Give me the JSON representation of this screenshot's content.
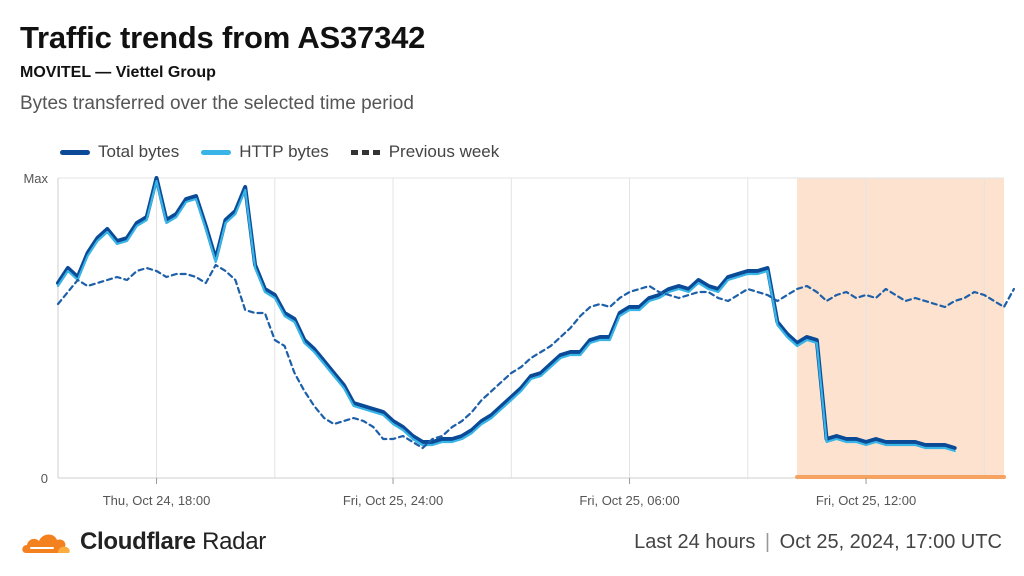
{
  "header": {
    "title": "Traffic trends from AS37342",
    "subtitle": "MOVITEL — Viettel Group",
    "description": "Bytes transferred over the selected time period"
  },
  "legend": {
    "total": "Total bytes",
    "http": "HTTP bytes",
    "previous": "Previous week"
  },
  "footer": {
    "brand_bold": "Cloudflare",
    "brand_light": "Radar",
    "period": "Last 24 hours",
    "separator": "|",
    "date": "Oct 25, 2024, 17:00 UTC"
  },
  "colors": {
    "total": "#0b4a96",
    "http": "#38b4e6",
    "previous": "#1d5fa8",
    "highlight_fill": "#fde3cf",
    "highlight_bar": "#f6a261",
    "grid": "#e3e3e3",
    "brand_orange": "#f48120"
  },
  "chart_data": {
    "type": "line",
    "ytick_labels": [
      "Max",
      "0"
    ],
    "ylim": [
      0,
      100
    ],
    "xlim": [
      0,
      96
    ],
    "x_ticks": [
      {
        "x": 10,
        "label": "Thu, Oct 24, 18:00"
      },
      {
        "x": 34,
        "label": "Fri, Oct 25, 24:00"
      },
      {
        "x": 58,
        "label": "Fri, Oct 25, 06:00"
      },
      {
        "x": 82,
        "label": "Fri, Oct 25, 12:00"
      }
    ],
    "minor_ticks": [
      22,
      46,
      70,
      94
    ],
    "highlight_range": [
      75,
      96
    ],
    "series": [
      {
        "name": "Total bytes",
        "style": "solid",
        "values": [
          65,
          70,
          67,
          75,
          80,
          83,
          79,
          80,
          85,
          87,
          100,
          86,
          88,
          93,
          94,
          84,
          73,
          86,
          89,
          97,
          71,
          63,
          61,
          55,
          53,
          46,
          43,
          39,
          35,
          31,
          25,
          24,
          23,
          22,
          19,
          17,
          14,
          12,
          12,
          13,
          13,
          14,
          16,
          19,
          21,
          24,
          27,
          30,
          34,
          35,
          38,
          41,
          42,
          42,
          46,
          47,
          47,
          55,
          57,
          57,
          60,
          61,
          63,
          64,
          63,
          66,
          64,
          63,
          67,
          68,
          69,
          69,
          70,
          52,
          48,
          45,
          47,
          46,
          13,
          14,
          13,
          13,
          12,
          13,
          12,
          12,
          12,
          12,
          11,
          11,
          11,
          10
        ]
      },
      {
        "name": "HTTP bytes",
        "style": "solid",
        "values": [
          64,
          69,
          66,
          74,
          79,
          82,
          78,
          79,
          84,
          86,
          99,
          85,
          87,
          92,
          93,
          83,
          72,
          85,
          88,
          96,
          70,
          62,
          60,
          54,
          52,
          45,
          42,
          38,
          34,
          30,
          24,
          23,
          22,
          21,
          18,
          16,
          13,
          11,
          11,
          12,
          12,
          13,
          15,
          18,
          20,
          23,
          26,
          29,
          33,
          34,
          37,
          40,
          41,
          41,
          45,
          46,
          46,
          54,
          56,
          56,
          59,
          60,
          62,
          63,
          62,
          65,
          63,
          62,
          66,
          67,
          68,
          68,
          69,
          51,
          47,
          44,
          46,
          45,
          12,
          13,
          12,
          12,
          11,
          12,
          11,
          11,
          11,
          11,
          10,
          10,
          10,
          9
        ]
      },
      {
        "name": "Previous week",
        "style": "dashed",
        "values": [
          58,
          62,
          66,
          64,
          65,
          66,
          67,
          66,
          69,
          70,
          69,
          67,
          68,
          68,
          67,
          65,
          71,
          69,
          66,
          56,
          55,
          55,
          46,
          44,
          35,
          29,
          24,
          20,
          18,
          19,
          20,
          19,
          17,
          13,
          13,
          14,
          12,
          10,
          13,
          14,
          17,
          19,
          22,
          26,
          29,
          32,
          35,
          37,
          40,
          42,
          44,
          47,
          50,
          54,
          57,
          58,
          57,
          60,
          62,
          63,
          64,
          62,
          61,
          60,
          61,
          62,
          62,
          60,
          59,
          61,
          63,
          62,
          61,
          59,
          61,
          63,
          64,
          62,
          59,
          61,
          62,
          60,
          61,
          60,
          63,
          61,
          59,
          60,
          59,
          58,
          57,
          59,
          60,
          62,
          61,
          59,
          57,
          63
        ]
      }
    ]
  }
}
